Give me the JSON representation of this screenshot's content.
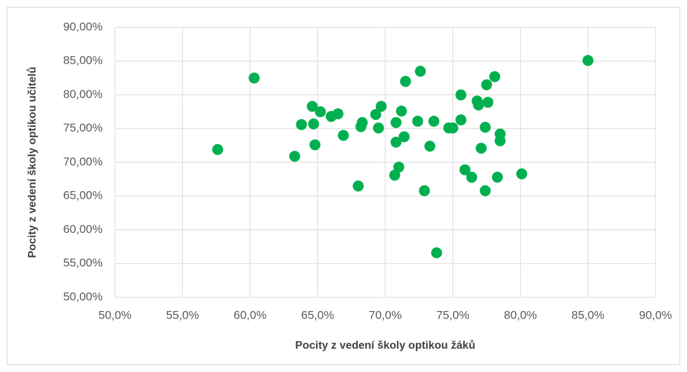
{
  "chart_data": {
    "type": "scatter",
    "xlabel": "Pocity z vedení školy optikou žáků",
    "ylabel": "Pocity z vedení školy optikou učitelů",
    "series": [
      {
        "color": "#00b050",
        "x": [
          57.6,
          60.3,
          63.3,
          63.8,
          64.6,
          64.7,
          64.8,
          65.2,
          66.0,
          66.5,
          66.9,
          68.0,
          68.2,
          68.3,
          69.3,
          69.5,
          69.7,
          70.7,
          70.8,
          70.8,
          71.0,
          71.2,
          71.4,
          71.5,
          72.4,
          72.6,
          72.9,
          73.3,
          73.6,
          73.8,
          74.7,
          75.0,
          75.6,
          75.6,
          75.9,
          76.4,
          76.8,
          76.9,
          77.1,
          77.4,
          77.4,
          77.5,
          77.6,
          78.1,
          78.3,
          78.5,
          78.5,
          80.1,
          85.0
        ],
        "values": [
          71.9,
          82.5,
          70.9,
          75.6,
          78.3,
          75.7,
          72.6,
          77.5,
          76.8,
          77.2,
          74.0,
          66.5,
          75.3,
          75.9,
          77.1,
          75.1,
          78.3,
          68.1,
          73.0,
          75.9,
          69.3,
          77.6,
          73.8,
          82.0,
          76.1,
          83.5,
          65.8,
          72.4,
          76.1,
          56.6,
          75.1,
          75.1,
          76.3,
          80.0,
          68.9,
          67.8,
          79.1,
          78.5,
          72.1,
          65.8,
          75.2,
          81.5,
          78.9,
          82.7,
          67.8,
          74.2,
          73.2,
          68.3,
          85.1
        ]
      }
    ],
    "xlim": [
      50,
      90
    ],
    "xticks": [
      {
        "value": 50,
        "label": "50,0%"
      },
      {
        "value": 55,
        "label": "55,0%"
      },
      {
        "value": 60,
        "label": "60,0%"
      },
      {
        "value": 65,
        "label": "65,0%"
      },
      {
        "value": 70,
        "label": "70,0%"
      },
      {
        "value": 75,
        "label": "75,0%"
      },
      {
        "value": 80,
        "label": "80,0%"
      },
      {
        "value": 85,
        "label": "85,0%"
      },
      {
        "value": 90,
        "label": "90,0%"
      }
    ],
    "ylim": [
      50,
      90
    ],
    "yticks": [
      {
        "value": 50,
        "label": "50,00%"
      },
      {
        "value": 55,
        "label": "55,00%"
      },
      {
        "value": 60,
        "label": "60,00%"
      },
      {
        "value": 65,
        "label": "65,00%"
      },
      {
        "value": 70,
        "label": "70,00%"
      },
      {
        "value": 75,
        "label": "75,00%"
      },
      {
        "value": 80,
        "label": "80,00%"
      },
      {
        "value": 85,
        "label": "85,00%"
      },
      {
        "value": 90,
        "label": "90,00%"
      }
    ],
    "grid": true
  }
}
